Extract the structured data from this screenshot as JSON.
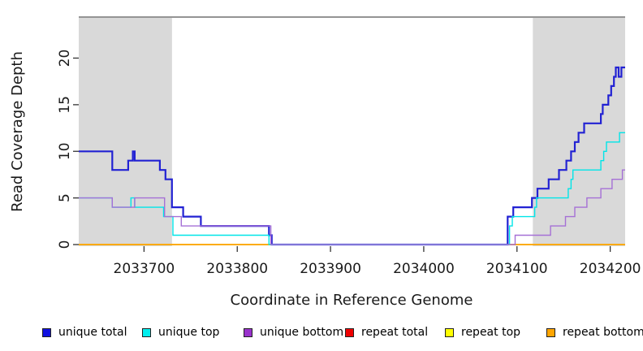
{
  "figure": {
    "xlabel": "Coordinate in Reference Genome",
    "ylabel": "Read Coverage Depth"
  },
  "legend": {
    "items": [
      {
        "label": "unique total",
        "swatch_color": "#1111E0"
      },
      {
        "label": "unique top",
        "swatch_color": "#00EEEE"
      },
      {
        "label": "unique bottom",
        "swatch_color": "#9932CC"
      },
      {
        "label": "repeat total",
        "swatch_color": "#EE0000"
      },
      {
        "label": "repeat top",
        "swatch_color": "#FFFF00"
      },
      {
        "label": "repeat bottom",
        "swatch_color": "#FFA500"
      }
    ]
  },
  "chart_data": {
    "type": "line",
    "subtype": "step-coverage",
    "title": "",
    "xlabel": "Coordinate in Reference Genome",
    "ylabel": "Read Coverage Depth",
    "xlim": [
      2033630,
      2034216
    ],
    "ylim": [
      0,
      24.4
    ],
    "xticks": [
      2033700,
      2033800,
      2033900,
      2034000,
      2034100,
      2034200
    ],
    "yticks": [
      0,
      5,
      10,
      15,
      20
    ],
    "grid": false,
    "legend_position": "bottom",
    "shade_color": "#d9d9d9",
    "top_border_color": "#949494",
    "tick_color": "#333333",
    "shaded_regions": [
      {
        "name": "repeat-region-left",
        "x0": 2033630,
        "x1": 2033730
      },
      {
        "name": "repeat-region-right",
        "x0": 2034117,
        "x1": 2034216
      }
    ],
    "paint_order": [
      "repeat total",
      "repeat top",
      "repeat bottom",
      "unique total",
      "unique top",
      "unique bottom"
    ],
    "series": [
      {
        "name": "unique total",
        "color": "#2222D3",
        "width": 2.2,
        "steps": [
          [
            2033630,
            10
          ],
          [
            2033666,
            8
          ],
          [
            2033683,
            9
          ],
          [
            2033688,
            10
          ],
          [
            2033690,
            9
          ],
          [
            2033717,
            8
          ],
          [
            2033723,
            7
          ],
          [
            2033730,
            4
          ],
          [
            2033742,
            3
          ],
          [
            2033761,
            2
          ],
          [
            2033834,
            1
          ],
          [
            2033837,
            0
          ],
          [
            2034090,
            3
          ],
          [
            2034096,
            4
          ],
          [
            2034116,
            5
          ],
          [
            2034122,
            6
          ],
          [
            2034134,
            7
          ],
          [
            2034145,
            8
          ],
          [
            2034153,
            9
          ],
          [
            2034158,
            10
          ],
          [
            2034162,
            11
          ],
          [
            2034166,
            12
          ],
          [
            2034172,
            13
          ],
          [
            2034190,
            14
          ],
          [
            2034192,
            15
          ],
          [
            2034198,
            16
          ],
          [
            2034201,
            17
          ],
          [
            2034204,
            18
          ],
          [
            2034206,
            19
          ],
          [
            2034209,
            18
          ],
          [
            2034212,
            19
          ]
        ]
      },
      {
        "name": "unique top",
        "color": "#00E5E8",
        "width": 1.4,
        "steps": [
          [
            2033630,
            5
          ],
          [
            2033666,
            4
          ],
          [
            2033686,
            5
          ],
          [
            2033690,
            4
          ],
          [
            2033721,
            3
          ],
          [
            2033731,
            1
          ],
          [
            2033834,
            0
          ],
          [
            2034092,
            2
          ],
          [
            2034095,
            3
          ],
          [
            2034119,
            4
          ],
          [
            2034121,
            5
          ],
          [
            2034155,
            6
          ],
          [
            2034158,
            7
          ],
          [
            2034160,
            8
          ],
          [
            2034190,
            9
          ],
          [
            2034193,
            10
          ],
          [
            2034196,
            11
          ],
          [
            2034210,
            12
          ]
        ]
      },
      {
        "name": "unique bottom",
        "color": "#A570D6",
        "width": 1.4,
        "steps": [
          [
            2033630,
            5
          ],
          [
            2033666,
            4
          ],
          [
            2033690,
            5
          ],
          [
            2033722,
            3
          ],
          [
            2033740,
            2
          ],
          [
            2033836,
            0
          ],
          [
            2034098,
            1
          ],
          [
            2034136,
            2
          ],
          [
            2034152,
            3
          ],
          [
            2034162,
            4
          ],
          [
            2034175,
            5
          ],
          [
            2034190,
            6
          ],
          [
            2034202,
            7
          ],
          [
            2034213,
            8
          ]
        ]
      },
      {
        "name": "repeat total",
        "color": "#CC0000",
        "width": 1.4,
        "steps": [
          [
            2033630,
            0
          ]
        ]
      },
      {
        "name": "repeat top",
        "color": "#FFFF00",
        "width": 1.4,
        "steps": [
          [
            2033630,
            0
          ]
        ]
      },
      {
        "name": "repeat bottom",
        "color": "#FFA500",
        "width": 1.6,
        "steps": [
          [
            2033630,
            0
          ]
        ]
      }
    ]
  }
}
